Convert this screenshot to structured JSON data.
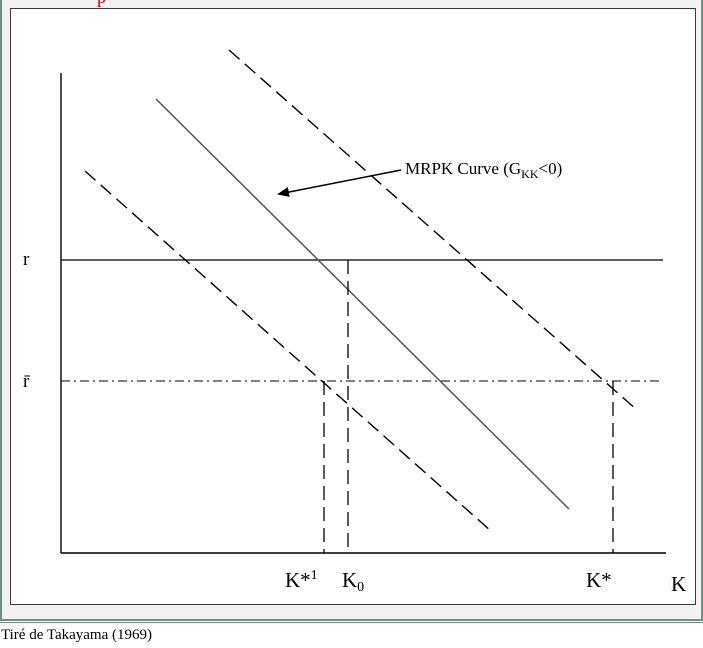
{
  "diagram": {
    "curve_label": "MRPK Curve (G",
    "curve_label_sub": "KK",
    "curve_label_tail": "<0)",
    "y_label_r": "r",
    "y_label_rbar": "r̄",
    "x_label_kstar1": "K*",
    "x_label_kstar1_sup": "1",
    "x_label_k0": "K",
    "x_label_k0_sub": "0",
    "x_label_kstar": "K*",
    "x_axis_label": "K"
  },
  "caption": {
    "source": "Tiré de Takayama (1969)"
  },
  "colors": {
    "top_fragment": "#cc0000",
    "frame_border": "#6f8f87"
  }
}
